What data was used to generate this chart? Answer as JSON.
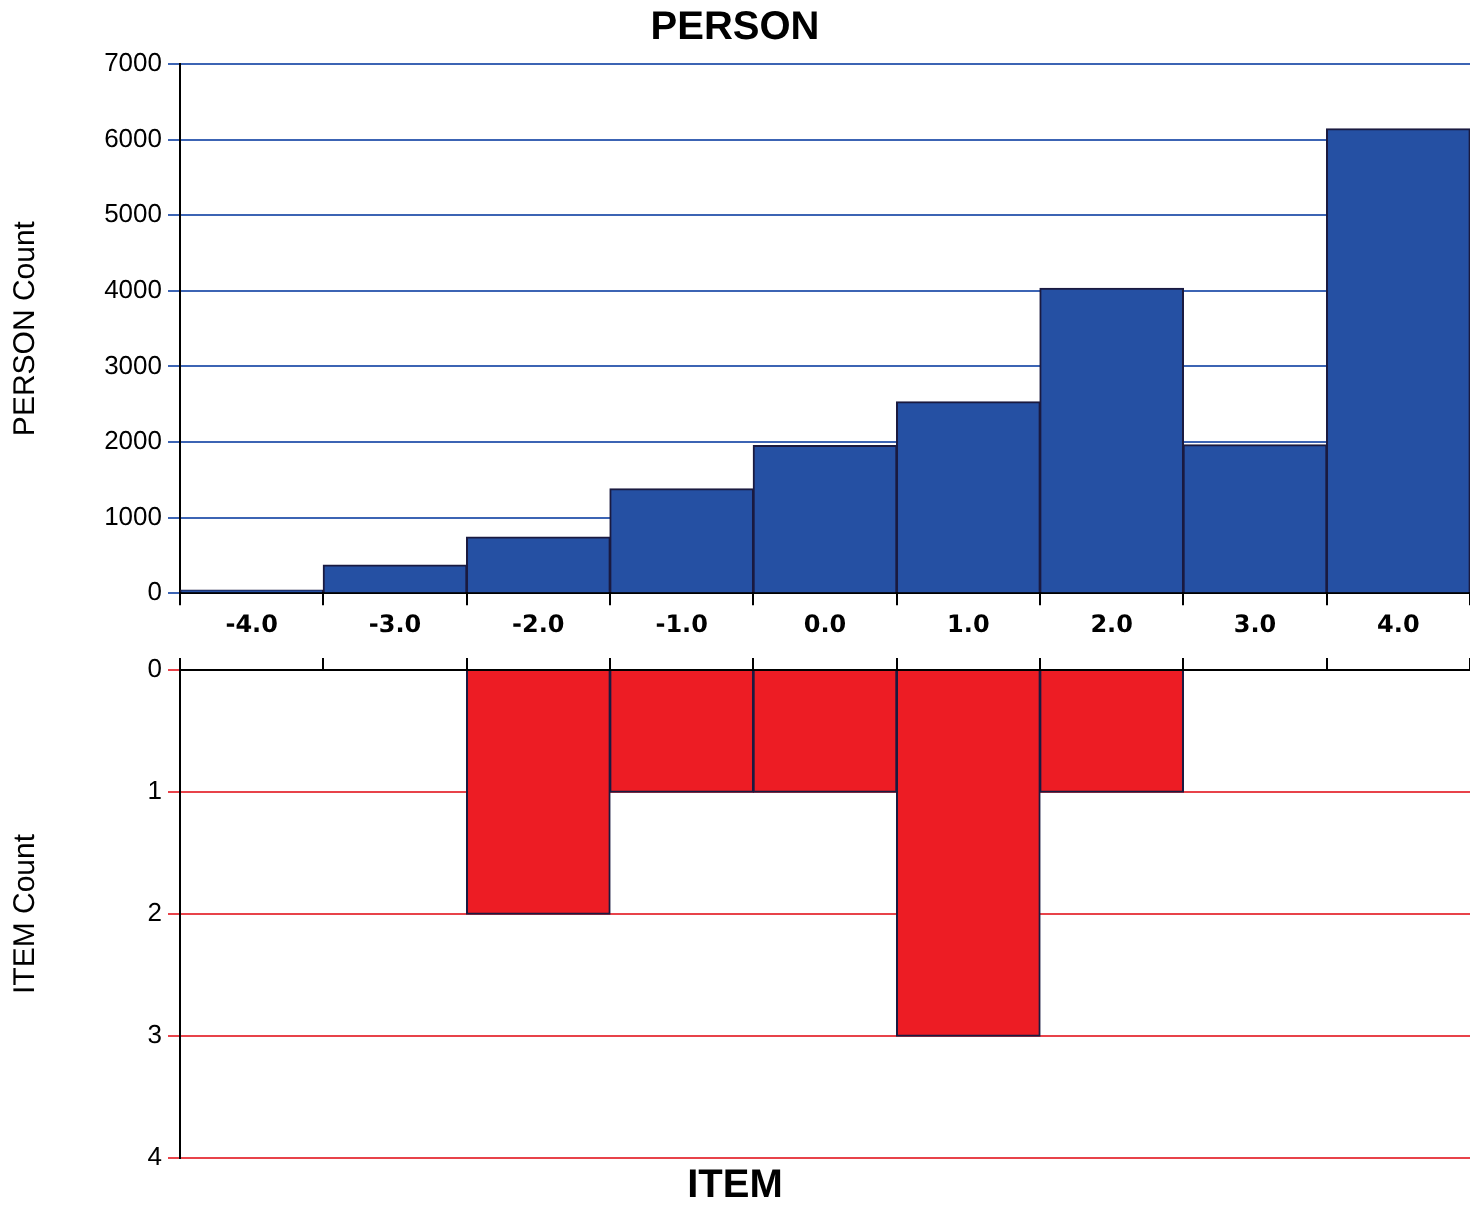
{
  "chart_data": [
    {
      "type": "histogram",
      "title": "PERSON",
      "ylabel": "PERSON Count",
      "bins": [
        -4.5,
        -3.5,
        -2.5,
        -1.5,
        -0.5,
        0.5,
        1.5,
        2.5,
        3.5,
        4.5
      ],
      "values": [
        40,
        370,
        740,
        1380,
        1950,
        2530,
        4030,
        1960,
        6140
      ],
      "color": "#2550a3",
      "xlim": [
        -4.5,
        4.5
      ],
      "xticks": [
        {
          "value": -4,
          "label": "-4.0"
        },
        {
          "value": -3,
          "label": "-3.0"
        },
        {
          "value": -2,
          "label": "-2.0"
        },
        {
          "value": -1,
          "label": "-1.0"
        },
        {
          "value": 0,
          "label": "0.0"
        },
        {
          "value": 1,
          "label": "1.0"
        },
        {
          "value": 2,
          "label": "2.0"
        },
        {
          "value": 3,
          "label": "3.0"
        },
        {
          "value": 4,
          "label": "4.0"
        }
      ],
      "ylim": [
        0,
        7000
      ],
      "yticks": [
        0,
        1000,
        2000,
        3000,
        4000,
        5000,
        6000,
        7000
      ],
      "grid": "y",
      "legend": false
    },
    {
      "type": "histogram",
      "xlabel": "ITEM",
      "ylabel": "ITEM Count",
      "bins": [
        -4.5,
        -3.5,
        -2.5,
        -1.5,
        -0.5,
        0.5,
        1.5,
        2.5,
        3.5,
        4.5
      ],
      "values": [
        0,
        0,
        2,
        1,
        1,
        3,
        1,
        0,
        0
      ],
      "color": "#ed1c24",
      "xlim": [
        -4.5,
        4.5
      ],
      "xticks": [
        {
          "value": -4,
          "label": null
        },
        {
          "value": -3,
          "label": null
        },
        {
          "value": -2,
          "label": null
        },
        {
          "value": -1,
          "label": null
        },
        {
          "value": 0,
          "label": null
        },
        {
          "value": 1,
          "label": null
        },
        {
          "value": 2,
          "label": null
        },
        {
          "value": 3,
          "label": null
        },
        {
          "value": 4,
          "label": null
        }
      ],
      "ylim": [
        4,
        0
      ],
      "yticks": [
        0,
        1,
        2,
        3,
        4
      ],
      "grid": "y",
      "legend": false,
      "tick_labels": "y"
    }
  ]
}
